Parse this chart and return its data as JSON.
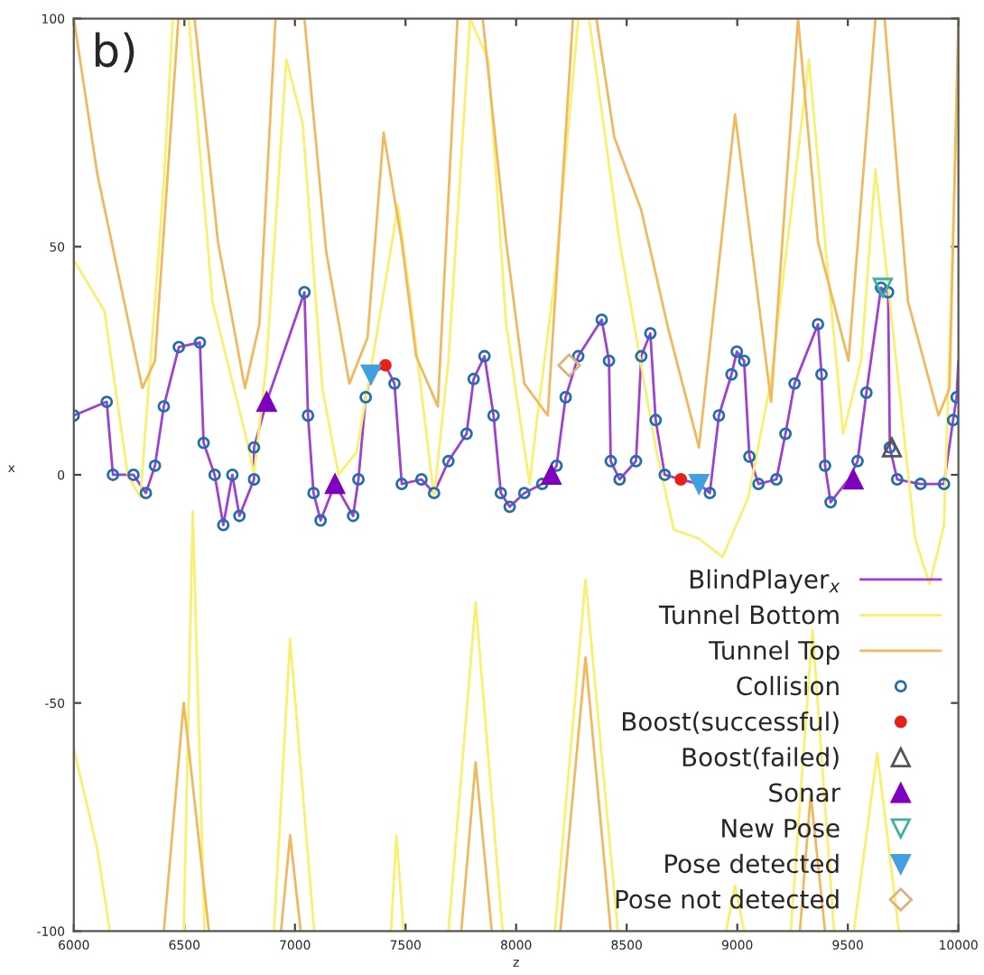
{
  "chart_data": {
    "type": "line",
    "xlabel": "z",
    "ylabel": "x",
    "annotations": [
      "b)"
    ],
    "xlim": [
      6000,
      10000
    ],
    "xticks": [
      6000,
      6500,
      7000,
      7500,
      8000,
      8500,
      9000,
      9500,
      10000
    ],
    "ylim": [
      -100,
      100
    ],
    "yticks": [
      -100,
      -50,
      0,
      50,
      100
    ],
    "grid": false,
    "legend": "bottom right",
    "series": [
      {
        "name": "BlindPlayer$_{x}$",
        "color": "#a040d0",
        "x": [
          6000,
          6149,
          6177,
          6270,
          6326,
          6367,
          6407,
          6475,
          6570,
          6587,
          6637,
          6676,
          6717,
          6749,
          6815,
          6815,
          6872,
          7043,
          7059,
          7084,
          7116,
          7181,
          7263,
          7287,
          7320,
          7344,
          7409,
          7450,
          7483,
          7572,
          7629,
          7694,
          7776,
          7808,
          7857,
          7898,
          7931,
          7971,
          8037,
          8118,
          8159,
          8183,
          8224,
          8281,
          8387,
          8420,
          8428,
          8468,
          8542,
          8566,
          8607,
          8631,
          8672,
          8745,
          8827,
          8876,
          8917,
          8974,
          8998,
          9031,
          9055,
          9096,
          9177,
          9218,
          9259,
          9365,
          9381,
          9397,
          9422,
          9503,
          9544,
          9584,
          9650,
          9682,
          9690,
          9723,
          9829,
          9935,
          9976,
          9992,
          10000
        ],
        "values": [
          13,
          16,
          0,
          0,
          -4,
          2,
          15,
          28,
          29,
          7,
          0,
          -11,
          0,
          -9,
          -1,
          6,
          16,
          40,
          13,
          -4,
          -10,
          -2,
          -9,
          -1,
          17,
          22,
          24,
          20,
          -2,
          -1,
          -4,
          3,
          9,
          21,
          26,
          13,
          -4,
          -7,
          -4,
          -2,
          0,
          2,
          17,
          26,
          34,
          25,
          3,
          -1,
          3,
          26,
          31,
          12,
          0,
          -1,
          -2,
          -4,
          13,
          22,
          27,
          25,
          4,
          -2,
          -1,
          9,
          20,
          33,
          22,
          2,
          -6,
          -1,
          3,
          18,
          41,
          40,
          6,
          -1,
          -2,
          -2,
          12,
          17,
          25
        ]
      },
      {
        "name": "Tunnel Bottom",
        "color": "#f8f070",
        "x": [
          6000,
          6138,
          6244,
          6301,
          6407,
          6448,
          6520,
          6627,
          6790,
          6815,
          6872,
          6961,
          7035,
          7124,
          7197,
          7279,
          7360,
          7466,
          7523,
          7629,
          7694,
          7792,
          7874,
          7955,
          8061,
          8094,
          8175,
          8281,
          8330,
          8468,
          8631,
          8713,
          8827,
          8933,
          9050,
          9150,
          9259,
          9324,
          9397,
          9479,
          9560,
          9625,
          9690,
          9804,
          9870,
          9935,
          10000
        ],
        "values": [
          47,
          36,
          0,
          -5,
          64,
          100,
          100,
          38,
          6,
          0,
          25,
          91,
          77,
          19,
          0,
          5,
          28,
          59,
          38,
          -5,
          25,
          100,
          91,
          33,
          -2,
          12,
          43,
          100,
          100,
          51,
          6,
          -12,
          -14,
          -18,
          -5,
          20,
          64,
          91,
          51,
          9,
          25,
          67,
          38,
          -14,
          -24,
          -11,
          91
        ]
      },
      {
        "name": "Tunnel Top",
        "color": "#f0b860",
        "x": [
          6000,
          6106,
          6310,
          6367,
          6473,
          6546,
          6652,
          6774,
          6839,
          6912,
          7043,
          7141,
          7246,
          7328,
          7401,
          7483,
          7548,
          7646,
          7735,
          7849,
          7955,
          8037,
          8143,
          8257,
          8363,
          8444,
          8566,
          8688,
          8827,
          8990,
          9153,
          9275,
          9365,
          9503,
          9625,
          9666,
          9772,
          9910,
          9960,
          10000
        ],
        "values": [
          100,
          66,
          19,
          25,
          100,
          100,
          51,
          19,
          33,
          100,
          100,
          49,
          20,
          30,
          75,
          51,
          26,
          15,
          100,
          100,
          51,
          20,
          13,
          100,
          100,
          74,
          58,
          32,
          6,
          79,
          16,
          100,
          51,
          25,
          100,
          100,
          38,
          13,
          19,
          100
        ]
      },
      {
        "color": "#f8f070",
        "x": [
          6000,
          6106,
          6163,
          6300,
          6497,
          6538,
          6591,
          6700,
          6905,
          6978,
          7087,
          7200,
          7434,
          7459,
          7491,
          7600,
          7694,
          7817,
          7939,
          8050,
          8175,
          8314,
          8460,
          8700,
          8949,
          8990,
          9031,
          9100,
          9242,
          9340,
          9438,
          9480,
          9527,
          9633,
          9731
        ],
        "values": [
          -60,
          -82,
          -100,
          null,
          -100,
          -8,
          -100,
          null,
          -100,
          -36,
          -100,
          null,
          -100,
          -79,
          -100,
          null,
          -100,
          -28,
          -100,
          null,
          -100,
          -23,
          -100,
          null,
          -100,
          -90,
          -100,
          null,
          -100,
          -34,
          -100,
          null,
          -100,
          -61,
          -100
        ]
      },
      {
        "color": "#f0b860",
        "x": [
          6407,
          6497,
          6611,
          6800,
          6937,
          6978,
          7026,
          7500,
          7752,
          7817,
          7890,
          8000,
          8200,
          8314,
          8428,
          9000,
          9283,
          9332,
          9397
        ],
        "values": [
          -100,
          -50,
          -100,
          null,
          -100,
          -79,
          -100,
          null,
          -100,
          -63,
          -100,
          null,
          -100,
          -40,
          -100,
          null,
          -100,
          -70,
          -100
        ]
      },
      {
        "name": "Collision",
        "type": "scatter",
        "marker": "circle_open",
        "color": "#1f6fae",
        "x": [
          6000,
          6149,
          6177,
          6270,
          6326,
          6367,
          6407,
          6475,
          6570,
          6587,
          6637,
          6676,
          6717,
          6749,
          6815,
          6815,
          7043,
          7059,
          7084,
          7116,
          7263,
          7287,
          7320,
          7450,
          7483,
          7572,
          7629,
          7694,
          7776,
          7808,
          7857,
          7898,
          7931,
          7971,
          8037,
          8118,
          8183,
          8224,
          8281,
          8387,
          8420,
          8428,
          8468,
          8542,
          8566,
          8607,
          8631,
          8672,
          8876,
          8917,
          8974,
          8998,
          9031,
          9055,
          9096,
          9177,
          9218,
          9259,
          9365,
          9381,
          9397,
          9422,
          9544,
          9584,
          9650,
          9682,
          9690,
          9723,
          9829,
          9935,
          9976,
          9992
        ],
        "values": [
          13,
          16,
          0,
          0,
          -4,
          2,
          15,
          28,
          29,
          7,
          0,
          -11,
          0,
          -9,
          -1,
          6,
          40,
          13,
          -4,
          -10,
          -9,
          -1,
          17,
          20,
          -2,
          -1,
          -4,
          3,
          9,
          21,
          26,
          13,
          -4,
          -7,
          -4,
          -2,
          2,
          17,
          26,
          34,
          25,
          3,
          -1,
          3,
          26,
          31,
          12,
          0,
          -4,
          13,
          22,
          27,
          25,
          4,
          -2,
          -1,
          9,
          20,
          33,
          22,
          2,
          -6,
          3,
          18,
          41,
          40,
          6,
          -1,
          -2,
          -2,
          12,
          17
        ]
      },
      {
        "name": "Boost(successful)",
        "type": "scatter",
        "marker": "circle",
        "color": "#e8201a",
        "x": [
          7409,
          8745
        ],
        "values": [
          24,
          -1
        ]
      },
      {
        "name": "Boost(failed)",
        "type": "scatter",
        "marker": "triangle_open",
        "color": "#555555",
        "x": [
          9699
        ],
        "values": [
          6
        ]
      },
      {
        "name": "Sonar",
        "type": "scatter",
        "marker": "triangle",
        "color": "#8000c0",
        "x": [
          6872,
          7181,
          8159,
          9525
        ],
        "values": [
          16,
          -2,
          0,
          -1
        ]
      },
      {
        "name": "New Pose",
        "type": "scatter",
        "marker": "triangle_down_open",
        "color": "#40b0a0",
        "x": [
          9658
        ],
        "values": [
          41
        ]
      },
      {
        "name": "Pose detected",
        "type": "scatter",
        "marker": "triangle_down",
        "color": "#40a0e0",
        "x": [
          7344,
          8827
        ],
        "values": [
          22,
          -2
        ]
      },
      {
        "name": "Pose not detected",
        "type": "scatter",
        "marker": "diamond_open",
        "color": "#e0b080",
        "x": [
          8240
        ],
        "values": [
          24
        ]
      }
    ]
  }
}
